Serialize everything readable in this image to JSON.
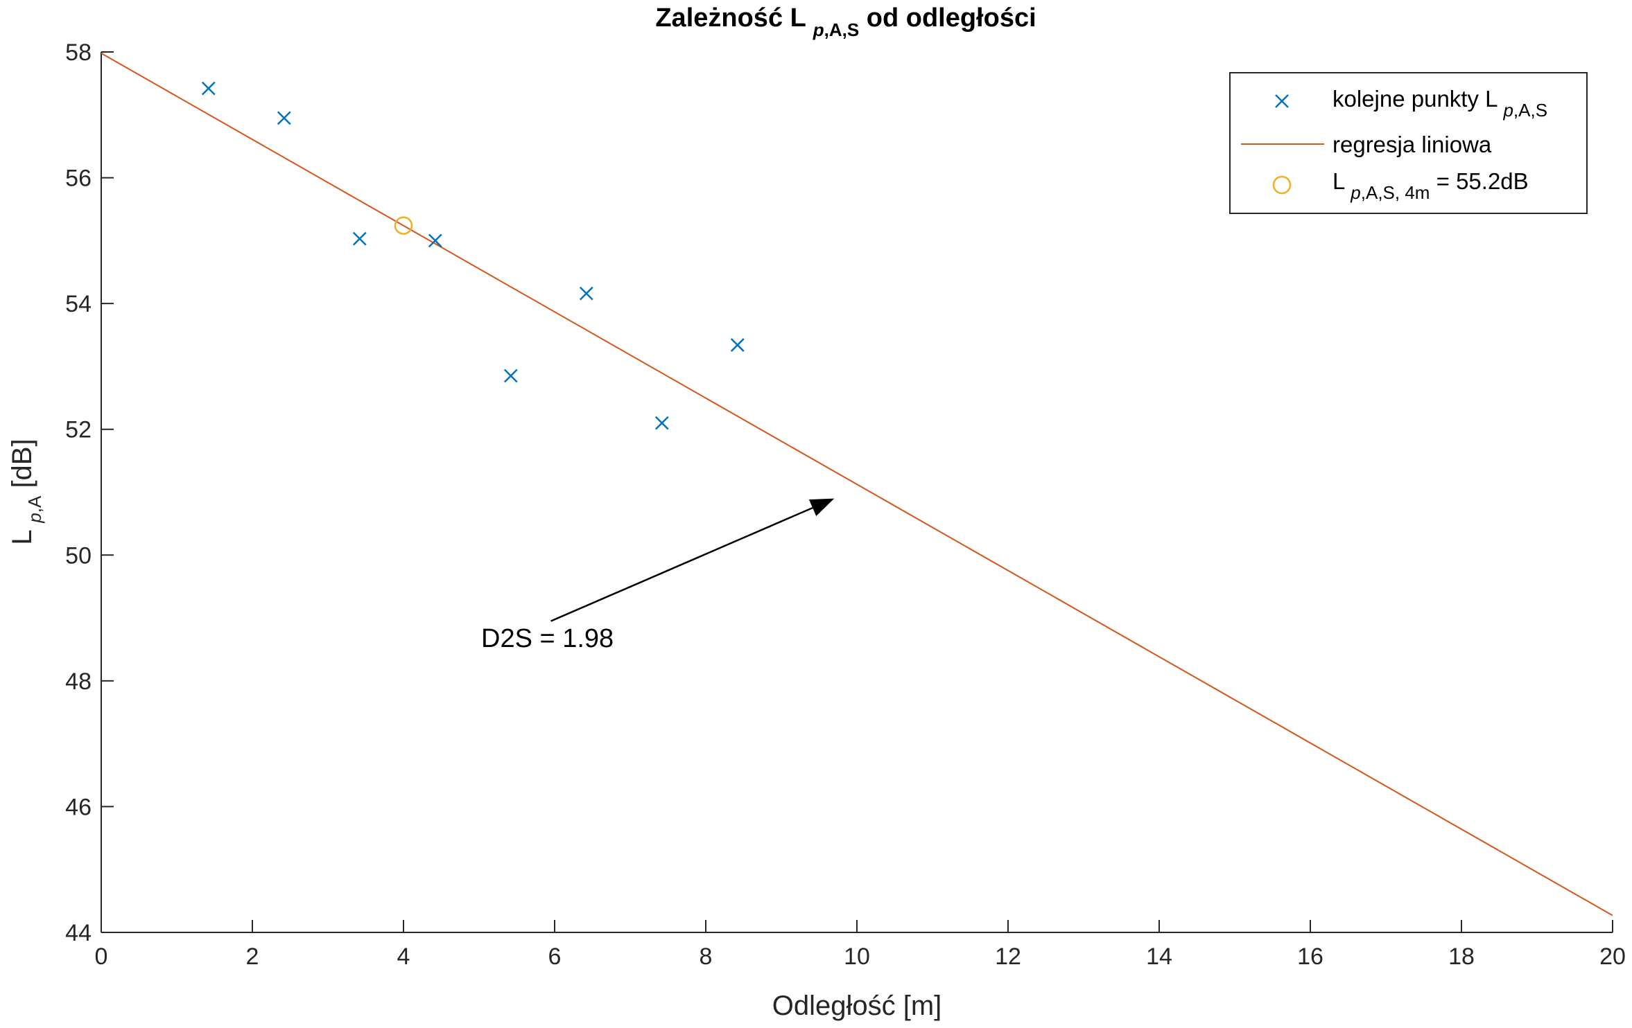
{
  "chart_data": {
    "type": "scatter",
    "title": {
      "prefix": "Zależność L ",
      "sub_italic": "p",
      "sub_rest": ",A,S",
      "suffix": " od odległości"
    },
    "xlabel": "Odległość [m]",
    "ylabel": {
      "main": "L ",
      "sub_italic": "p",
      "sub_rest": ",A",
      "suffix": " [dB]"
    },
    "xlim": [
      0,
      20
    ],
    "ylim": [
      44,
      58
    ],
    "xticks": [
      "0",
      "2",
      "4",
      "6",
      "8",
      "10",
      "12",
      "14",
      "16",
      "18",
      "20"
    ],
    "yticks": [
      "44",
      "46",
      "48",
      "50",
      "52",
      "54",
      "56",
      "58"
    ],
    "grid": false,
    "series": [
      {
        "name": "kolejne punkty L p,A,S",
        "kind": "scatter",
        "marker": "x",
        "color": "#0072BD",
        "x": [
          1.42,
          2.42,
          3.42,
          4.42,
          5.42,
          6.42,
          7.42,
          8.42
        ],
        "y": [
          57.42,
          56.95,
          55.03,
          55.0,
          52.85,
          54.16,
          52.1,
          53.34
        ]
      },
      {
        "name": "regresja liniowa",
        "kind": "line",
        "color": "#D95319",
        "x": [
          0,
          20
        ],
        "y": [
          57.98,
          44.27
        ]
      },
      {
        "name": "L p,A,S, 4m = 55.2dB",
        "kind": "scatter",
        "marker": "o",
        "color": "#EDB120",
        "x": [
          4.0
        ],
        "y": [
          55.24
        ]
      }
    ],
    "legend": {
      "placement": "top-right",
      "entries": [
        {
          "main": "kolejne punkty L ",
          "sub_italic": "p",
          "sub_rest": ",A,S",
          "after": ""
        },
        {
          "main": "regresja liniowa",
          "sub_italic": "",
          "sub_rest": "",
          "after": ""
        },
        {
          "main": "L ",
          "sub_italic": "p",
          "sub_rest": ",A,S, 4m",
          "after": " = 55.2dB"
        }
      ]
    },
    "annotation": {
      "text": "D2S = 1.98",
      "arrow_from": [
        5.95,
        48.95
      ],
      "arrow_to": [
        9.7,
        50.9
      ]
    }
  }
}
